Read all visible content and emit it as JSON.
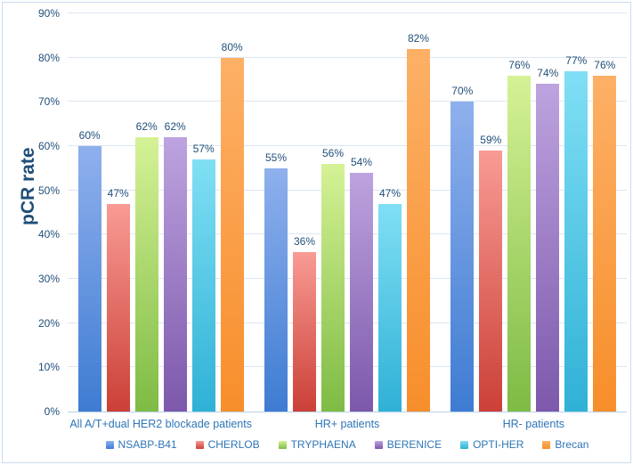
{
  "colors": {
    "border": "#C9DDF0",
    "gridline": "#DCE6F3",
    "axis_line": "#B9D1E8",
    "axis_tick_text": "#1F4E79",
    "value_label_text": "#1F4E79",
    "category_text": "#2E75B6",
    "legend_text": "#2E75B6",
    "y_axis_title_text": "#1F4E79"
  },
  "chart_data": {
    "type": "bar",
    "title": "",
    "xlabel": "",
    "ylabel": "pCR rate",
    "ylim": [
      0,
      90
    ],
    "ytick_step": 10,
    "ytick_labels": [
      "0%",
      "10%",
      "20%",
      "30%",
      "40%",
      "50%",
      "60%",
      "70%",
      "80%",
      "90%"
    ],
    "grid": true,
    "legend_position": "bottom",
    "value_label_suffix": "%",
    "categories": [
      "All A/T+dual HER2 blockade patients",
      "HR+ patients",
      "HR- patients"
    ],
    "series": [
      {
        "name": "NSABP-B41",
        "values": [
          60,
          55,
          70
        ],
        "color_top": "#8FB0ED",
        "color_bottom": "#3E7CD2"
      },
      {
        "name": "CHERLOB",
        "values": [
          47,
          36,
          59
        ],
        "color_top": "#F89B94",
        "color_bottom": "#CB4037"
      },
      {
        "name": "TRYPHAENA",
        "values": [
          62,
          56,
          76
        ],
        "color_top": "#D5F296",
        "color_bottom": "#7EBB44"
      },
      {
        "name": "BERENICE",
        "values": [
          62,
          54,
          74
        ],
        "color_top": "#BDA3DF",
        "color_bottom": "#7D58AB"
      },
      {
        "name": "OPTI-HER",
        "values": [
          57,
          47,
          77
        ],
        "color_top": "#80DFF4",
        "color_bottom": "#2FB1D6"
      },
      {
        "name": "Brecan",
        "values": [
          80,
          82,
          76
        ],
        "color_top": "#FDB066",
        "color_bottom": "#F78E2B"
      }
    ]
  }
}
